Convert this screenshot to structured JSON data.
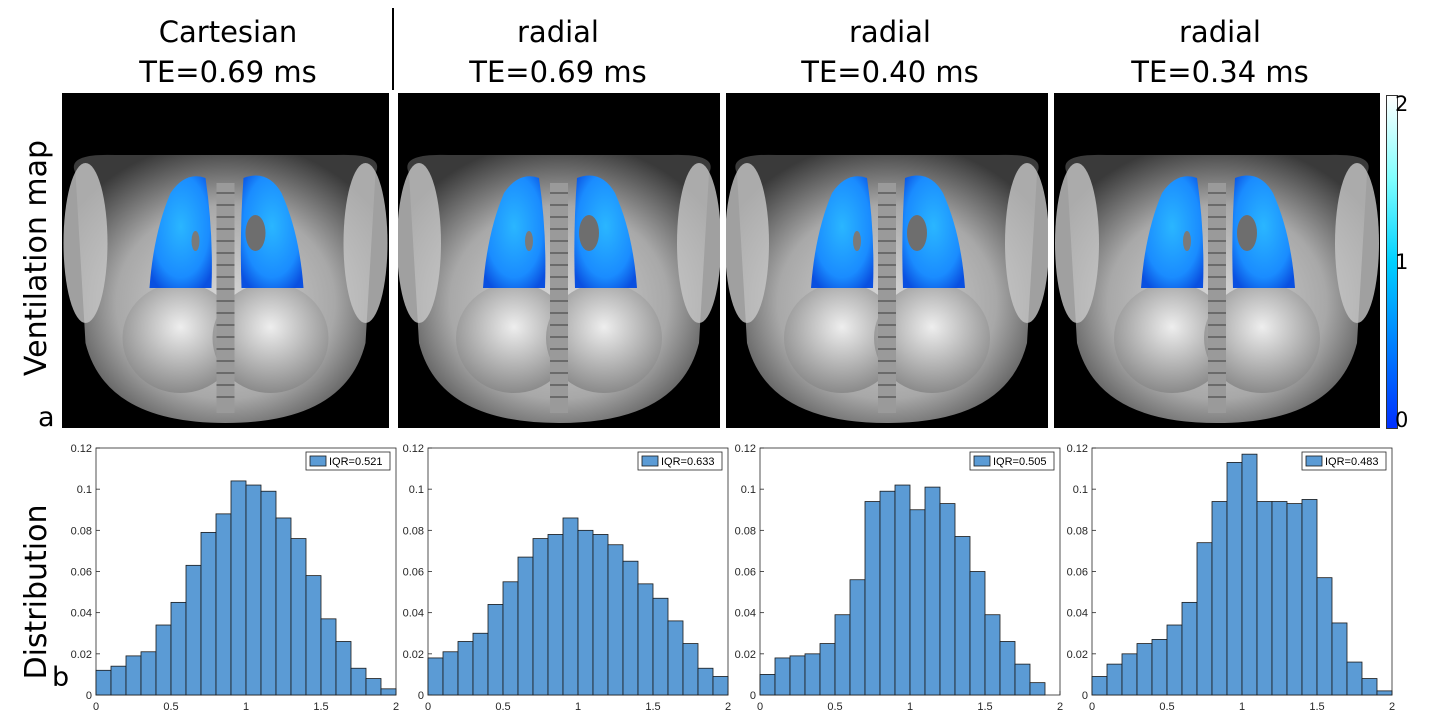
{
  "columns": [
    {
      "method": "Cartesian",
      "te": "TE=0.69 ms"
    },
    {
      "method": "radial",
      "te": "TE=0.69 ms"
    },
    {
      "method": "radial",
      "te": "TE=0.40 ms"
    },
    {
      "method": "radial",
      "te": "TE=0.34 ms"
    }
  ],
  "rows": {
    "top_label": "Ventilation map",
    "bottom_label": "Distribution",
    "top_letter": "a",
    "bottom_letter": "b"
  },
  "colorbar": {
    "ticks": [
      "2",
      "1",
      "0"
    ],
    "colors": [
      "#ffffff",
      "#00d0ff",
      "#0030ff"
    ]
  },
  "colors": {
    "bar_fill": "#5b9bd5",
    "bar_edge": "#1a1a1a",
    "ventilation_blue": "#1a8cff"
  },
  "chart_data": [
    {
      "type": "bar",
      "legend": "IQR=0.521",
      "xlim": [
        0,
        2
      ],
      "ylim": [
        0,
        0.12
      ],
      "xticks": [
        "0",
        "0.5",
        "1",
        "1.5",
        "2"
      ],
      "yticks": [
        "0",
        "0.02",
        "0.04",
        "0.06",
        "0.08",
        "0.1",
        "0.12"
      ],
      "bin_width": 0.1,
      "x": [
        0.05,
        0.15,
        0.25,
        0.35,
        0.45,
        0.55,
        0.65,
        0.75,
        0.85,
        0.95,
        1.05,
        1.15,
        1.25,
        1.35,
        1.45,
        1.55,
        1.65,
        1.75,
        1.85,
        1.95
      ],
      "values": [
        0.012,
        0.014,
        0.019,
        0.021,
        0.034,
        0.045,
        0.063,
        0.079,
        0.088,
        0.104,
        0.102,
        0.099,
        0.086,
        0.076,
        0.058,
        0.037,
        0.026,
        0.013,
        0.008,
        0.003
      ]
    },
    {
      "type": "bar",
      "legend": "IQR=0.633",
      "xlim": [
        0,
        2
      ],
      "ylim": [
        0,
        0.12
      ],
      "xticks": [
        "0",
        "0.5",
        "1",
        "1.5",
        "2"
      ],
      "yticks": [
        "0",
        "0.02",
        "0.04",
        "0.06",
        "0.08",
        "0.1",
        "0.12"
      ],
      "bin_width": 0.1,
      "x": [
        0.05,
        0.15,
        0.25,
        0.35,
        0.45,
        0.55,
        0.65,
        0.75,
        0.85,
        0.95,
        1.05,
        1.15,
        1.25,
        1.35,
        1.45,
        1.55,
        1.65,
        1.75,
        1.85,
        1.95
      ],
      "values": [
        0.018,
        0.021,
        0.026,
        0.03,
        0.044,
        0.055,
        0.067,
        0.076,
        0.078,
        0.086,
        0.08,
        0.078,
        0.073,
        0.065,
        0.054,
        0.047,
        0.036,
        0.025,
        0.013,
        0.009
      ]
    },
    {
      "type": "bar",
      "legend": "IQR=0.505",
      "xlim": [
        0,
        2
      ],
      "ylim": [
        0,
        0.12
      ],
      "xticks": [
        "0",
        "0.5",
        "1",
        "1.5",
        "2"
      ],
      "yticks": [
        "0",
        "0.02",
        "0.04",
        "0.06",
        "0.08",
        "0.1",
        "0.12"
      ],
      "bin_width": 0.1,
      "x": [
        0.05,
        0.15,
        0.25,
        0.35,
        0.45,
        0.55,
        0.65,
        0.75,
        0.85,
        0.95,
        1.05,
        1.15,
        1.25,
        1.35,
        1.45,
        1.55,
        1.65,
        1.75,
        1.85
      ],
      "values": [
        0.01,
        0.018,
        0.019,
        0.02,
        0.025,
        0.039,
        0.056,
        0.094,
        0.099,
        0.102,
        0.09,
        0.101,
        0.093,
        0.077,
        0.06,
        0.039,
        0.026,
        0.015,
        0.006
      ]
    },
    {
      "type": "bar",
      "legend": "IQR=0.483",
      "xlim": [
        0,
        2
      ],
      "ylim": [
        0,
        0.12
      ],
      "xticks": [
        "0",
        "0.5",
        "1",
        "1.5",
        "2"
      ],
      "yticks": [
        "0",
        "0.02",
        "0.04",
        "0.06",
        "0.08",
        "0.1",
        "0.12"
      ],
      "bin_width": 0.1,
      "x": [
        0.05,
        0.15,
        0.25,
        0.35,
        0.45,
        0.55,
        0.65,
        0.75,
        0.85,
        0.95,
        1.05,
        1.15,
        1.25,
        1.35,
        1.45,
        1.55,
        1.65,
        1.75,
        1.85,
        1.95
      ],
      "values": [
        0.009,
        0.015,
        0.02,
        0.025,
        0.027,
        0.034,
        0.045,
        0.074,
        0.094,
        0.113,
        0.117,
        0.094,
        0.094,
        0.093,
        0.095,
        0.057,
        0.035,
        0.016,
        0.008,
        0.002
      ]
    }
  ]
}
